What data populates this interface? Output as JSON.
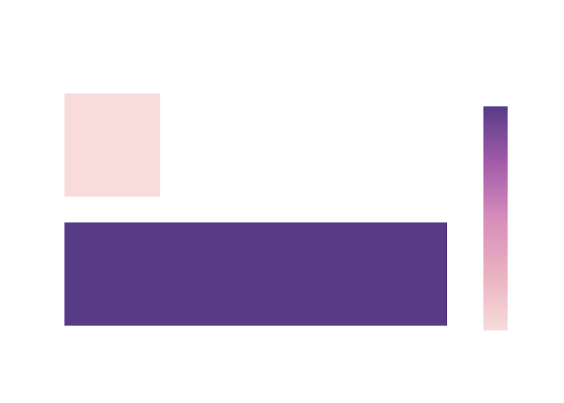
{
  "chart_data": {
    "type": "heatmap",
    "title": "",
    "xlabel": "",
    "ylabel": "",
    "show_axes": false,
    "grid": false,
    "rows": [
      {
        "cells": [
          {
            "x_start": 0,
            "x_end": 1,
            "value": 1
          }
        ]
      },
      {
        "cells": [
          {
            "x_start": 0,
            "x_end": 4,
            "value": 4
          }
        ]
      }
    ],
    "xlim": [
      0,
      4
    ],
    "zlim": [
      1,
      4
    ],
    "colorbar": {
      "show": true,
      "tick_labels_shown": false,
      "placement": "right"
    },
    "colorscale": [
      [
        0.0,
        "#f7dcdb"
      ],
      [
        0.25,
        "#eab1c0"
      ],
      [
        0.5,
        "#d78dbb"
      ],
      [
        0.75,
        "#a35aaa"
      ],
      [
        1.0,
        "#573b87"
      ]
    ]
  }
}
